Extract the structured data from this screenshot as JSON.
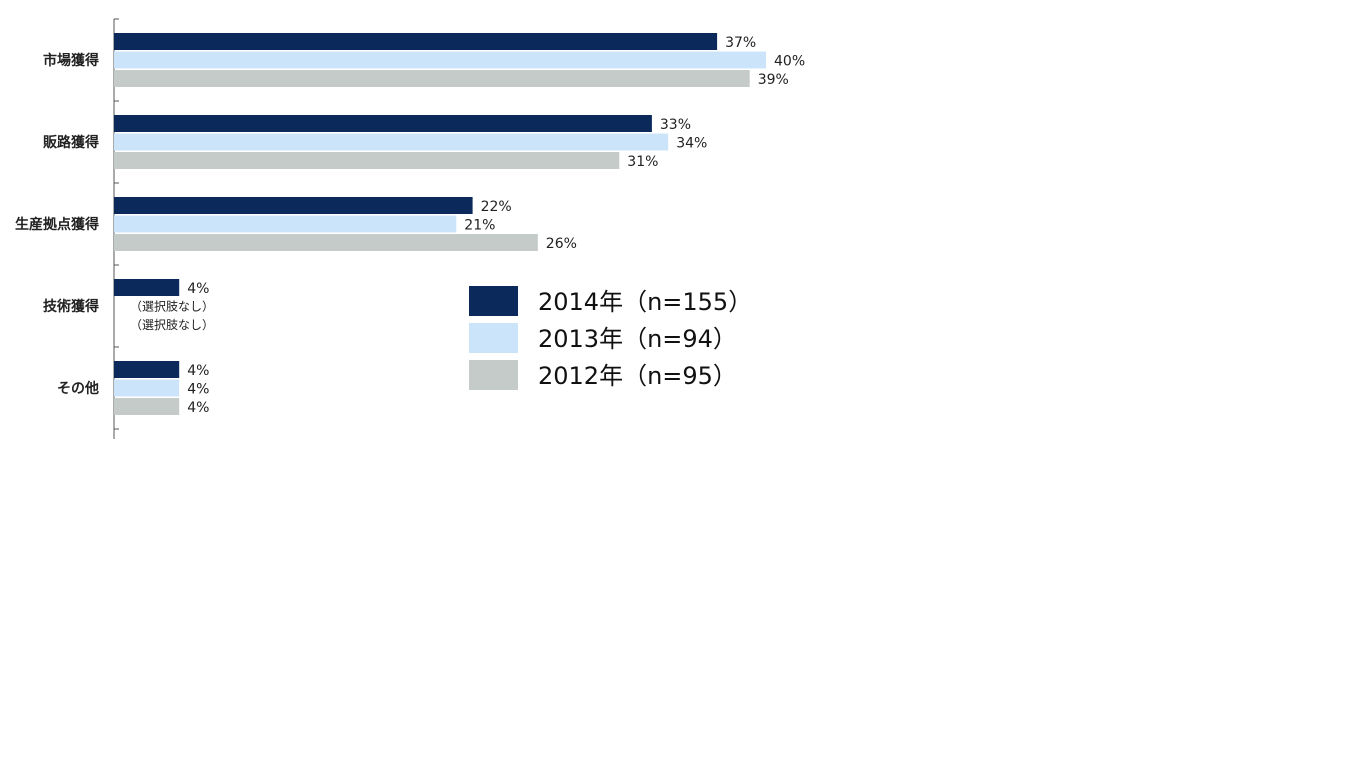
{
  "chart_data": {
    "type": "bar",
    "orientation": "horizontal",
    "title": "",
    "xlabel": "",
    "ylabel": "",
    "xlim": [
      0,
      50
    ],
    "grid": false,
    "legend_position": "right-center",
    "categories": [
      "市場獲得",
      "販路獲得",
      "生産拠点獲得",
      "技術獲得",
      "その他"
    ],
    "series": [
      {
        "name": "2014年（n=155）",
        "color": "#0b2a5b",
        "values": [
          37,
          33,
          22,
          4,
          4
        ],
        "labels": [
          "37%",
          "33%",
          "22%",
          "4%",
          "4%"
        ]
      },
      {
        "name": "2013年（n=94）",
        "color": "#cce4fa",
        "values": [
          40,
          34,
          21,
          null,
          4
        ],
        "labels": [
          "40%",
          "34%",
          "21%",
          "（選択肢なし）",
          "4%"
        ]
      },
      {
        "name": "2012年（n=95）",
        "color": "#c5cbc8",
        "values": [
          39,
          31,
          26,
          null,
          4
        ],
        "labels": [
          "39%",
          "31%",
          "26%",
          "（選択肢なし）",
          "4%"
        ]
      }
    ]
  }
}
